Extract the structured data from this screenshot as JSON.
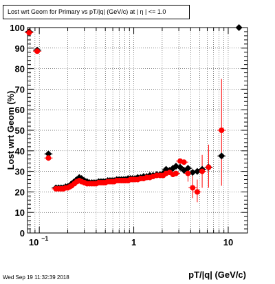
{
  "title": "Lost wrt Geom for Primary vs pT/|q| (GeV/c) at |   η | <= 1.0",
  "timestamp": "Wed Sep 19 11:32:39 2018",
  "chart_data": {
    "type": "scatter",
    "xlabel": "pT/|q| (GeV/c)",
    "ylabel": "Lost wrt Geom (%)",
    "xscale": "log",
    "xlim": [
      0.075,
      16
    ],
    "ylim": [
      0,
      100
    ],
    "grid": true,
    "x_tick_labels": [
      "10",
      "1",
      "10"
    ],
    "y_tick_labels": [
      "0",
      "10",
      "20",
      "30",
      "40",
      "50",
      "60",
      "70",
      "80",
      "90",
      "100"
    ],
    "series": [
      {
        "marker": "diamond",
        "color": "#000000",
        "points": [
          {
            "x": 0.078,
            "y": 98
          },
          {
            "x": 0.095,
            "y": 89
          },
          {
            "x": 0.125,
            "y": 38.5
          },
          {
            "x": 0.15,
            "y": 22
          },
          {
            "x": 0.16,
            "y": 22
          },
          {
            "x": 0.17,
            "y": 22
          },
          {
            "x": 0.18,
            "y": 22
          },
          {
            "x": 0.19,
            "y": 22.5
          },
          {
            "x": 0.2,
            "y": 22.5
          },
          {
            "x": 0.21,
            "y": 23
          },
          {
            "x": 0.22,
            "y": 24
          },
          {
            "x": 0.235,
            "y": 25
          },
          {
            "x": 0.25,
            "y": 26
          },
          {
            "x": 0.265,
            "y": 27
          },
          {
            "x": 0.28,
            "y": 26.5
          },
          {
            "x": 0.3,
            "y": 25.5
          },
          {
            "x": 0.32,
            "y": 25
          },
          {
            "x": 0.34,
            "y": 24.5
          },
          {
            "x": 0.36,
            "y": 24.5
          },
          {
            "x": 0.38,
            "y": 24.5
          },
          {
            "x": 0.4,
            "y": 24.5
          },
          {
            "x": 0.425,
            "y": 25
          },
          {
            "x": 0.45,
            "y": 25
          },
          {
            "x": 0.475,
            "y": 25
          },
          {
            "x": 0.5,
            "y": 25
          },
          {
            "x": 0.53,
            "y": 25.5
          },
          {
            "x": 0.56,
            "y": 25.5
          },
          {
            "x": 0.59,
            "y": 25.5
          },
          {
            "x": 0.62,
            "y": 25.5
          },
          {
            "x": 0.66,
            "y": 26
          },
          {
            "x": 0.7,
            "y": 26
          },
          {
            "x": 0.74,
            "y": 26
          },
          {
            "x": 0.78,
            "y": 26
          },
          {
            "x": 0.82,
            "y": 26
          },
          {
            "x": 0.87,
            "y": 26.5
          },
          {
            "x": 0.92,
            "y": 26.5
          },
          {
            "x": 0.97,
            "y": 26.5
          },
          {
            "x": 1.03,
            "y": 26.5
          },
          {
            "x": 1.1,
            "y": 27
          },
          {
            "x": 1.18,
            "y": 27
          },
          {
            "x": 1.27,
            "y": 27.5
          },
          {
            "x": 1.37,
            "y": 27.5
          },
          {
            "x": 1.48,
            "y": 28
          },
          {
            "x": 1.6,
            "y": 28
          },
          {
            "x": 1.75,
            "y": 28.5
          },
          {
            "x": 1.9,
            "y": 28.5
          },
          {
            "x": 2.05,
            "y": 29
          },
          {
            "x": 2.2,
            "y": 31
          },
          {
            "x": 2.4,
            "y": 30.5
          },
          {
            "x": 2.6,
            "y": 31.5
          },
          {
            "x": 2.8,
            "y": 32.5
          },
          {
            "x": 3.1,
            "y": 32
          },
          {
            "x": 3.4,
            "y": 30.5
          },
          {
            "x": 3.75,
            "y": 31.5
          },
          {
            "x": 4.2,
            "y": 29.5
          },
          {
            "x": 4.7,
            "y": 30
          },
          {
            "x": 5.3,
            "y": 31
          },
          {
            "x": 6.2,
            "y": 32
          },
          {
            "x": 8.5,
            "y": 37.5
          },
          {
            "x": 13.0,
            "y": 100
          }
        ]
      },
      {
        "marker": "circle",
        "color": "#ff0000",
        "points": [
          {
            "x": 0.078,
            "y": 97.5
          },
          {
            "x": 0.095,
            "y": 88.5
          },
          {
            "x": 0.125,
            "y": 36.5
          },
          {
            "x": 0.15,
            "y": 21.5
          },
          {
            "x": 0.16,
            "y": 21.5
          },
          {
            "x": 0.17,
            "y": 21.5
          },
          {
            "x": 0.18,
            "y": 21.5
          },
          {
            "x": 0.19,
            "y": 22
          },
          {
            "x": 0.2,
            "y": 22
          },
          {
            "x": 0.21,
            "y": 22.5
          },
          {
            "x": 0.22,
            "y": 23
          },
          {
            "x": 0.235,
            "y": 24
          },
          {
            "x": 0.25,
            "y": 25
          },
          {
            "x": 0.265,
            "y": 25.5
          },
          {
            "x": 0.28,
            "y": 25
          },
          {
            "x": 0.3,
            "y": 24.5
          },
          {
            "x": 0.32,
            "y": 24
          },
          {
            "x": 0.34,
            "y": 24
          },
          {
            "x": 0.36,
            "y": 24
          },
          {
            "x": 0.38,
            "y": 24
          },
          {
            "x": 0.4,
            "y": 24
          },
          {
            "x": 0.425,
            "y": 24.5
          },
          {
            "x": 0.45,
            "y": 24.5
          },
          {
            "x": 0.475,
            "y": 24.5
          },
          {
            "x": 0.5,
            "y": 24.5
          },
          {
            "x": 0.53,
            "y": 25
          },
          {
            "x": 0.56,
            "y": 25
          },
          {
            "x": 0.59,
            "y": 25
          },
          {
            "x": 0.62,
            "y": 25
          },
          {
            "x": 0.66,
            "y": 25.5
          },
          {
            "x": 0.7,
            "y": 25.5
          },
          {
            "x": 0.74,
            "y": 25.5
          },
          {
            "x": 0.78,
            "y": 25.5
          },
          {
            "x": 0.82,
            "y": 25.5
          },
          {
            "x": 0.87,
            "y": 25.5
          },
          {
            "x": 0.92,
            "y": 26
          },
          {
            "x": 0.97,
            "y": 26
          },
          {
            "x": 1.03,
            "y": 26
          },
          {
            "x": 1.1,
            "y": 26
          },
          {
            "x": 1.18,
            "y": 26.5
          },
          {
            "x": 1.27,
            "y": 26.5
          },
          {
            "x": 1.37,
            "y": 27
          },
          {
            "x": 1.48,
            "y": 27
          },
          {
            "x": 1.6,
            "y": 27.5
          },
          {
            "x": 1.75,
            "y": 28
          },
          {
            "x": 1.9,
            "y": 28
          },
          {
            "x": 2.05,
            "y": 28
          },
          {
            "x": 2.2,
            "y": 29
          },
          {
            "x": 2.4,
            "y": 29.5
          },
          {
            "x": 2.6,
            "y": 28.5
          },
          {
            "x": 2.8,
            "y": 29
          },
          {
            "x": 3.1,
            "y": 35
          },
          {
            "x": 3.4,
            "y": 34.5
          },
          {
            "x": 3.75,
            "y": 29
          },
          {
            "x": 4.2,
            "y": 22
          },
          {
            "x": 4.7,
            "y": 20
          },
          {
            "x": 5.3,
            "y": 30
          },
          {
            "x": 6.2,
            "y": 32
          },
          {
            "x": 8.5,
            "y": 50
          }
        ],
        "error_bars": [
          {
            "x": 3.75,
            "lo": 25,
            "hi": 33
          },
          {
            "x": 4.2,
            "lo": 17,
            "hi": 28
          },
          {
            "x": 4.7,
            "lo": 15,
            "hi": 26
          },
          {
            "x": 5.3,
            "lo": 22,
            "hi": 38
          },
          {
            "x": 6.2,
            "lo": 22,
            "hi": 43
          },
          {
            "x": 8.5,
            "lo": 23,
            "hi": 75
          }
        ]
      }
    ]
  }
}
